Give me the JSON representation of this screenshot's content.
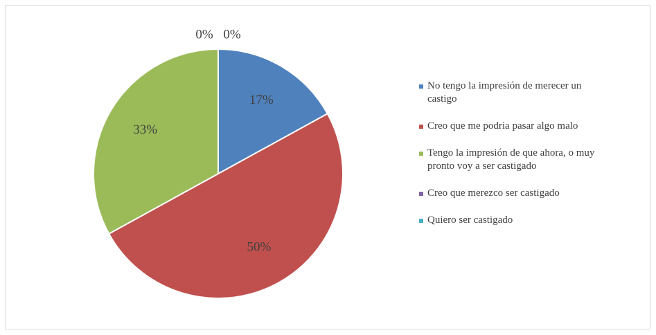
{
  "chart_data": {
    "type": "pie",
    "categories": [
      "No tengo la impresión de merecer un castigo",
      "Creo que me podria pasar algo malo",
      "Tengo la impresión de que ahora, o muy pronto voy a ser castigado",
      "Creo que merezco ser castigado",
      "Quiero ser castigado"
    ],
    "values": [
      17,
      50,
      33,
      0,
      0
    ],
    "value_labels": [
      "17%",
      "50%",
      "33%",
      "0%",
      "0%"
    ],
    "colors": [
      "#4f81bd",
      "#c0504d",
      "#9bbb59",
      "#8064a2",
      "#4bacc6"
    ],
    "legend": "right"
  }
}
